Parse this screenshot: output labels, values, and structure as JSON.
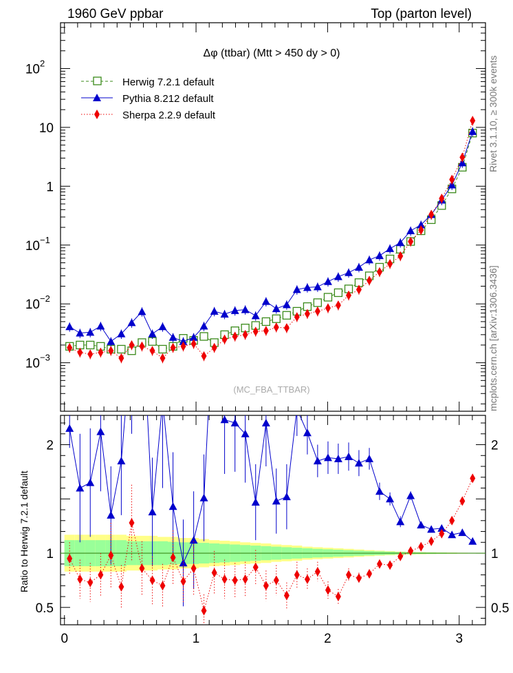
{
  "header": {
    "left": "1960 GeV ppbar",
    "right": "Top (parton level)"
  },
  "side_label_1": "Rivet 3.1.10, ≥ 300k events",
  "side_label_2": "mcplots.cern.ch [arXiv:1306.3436]",
  "watermark": "(MC_FBA_TTBAR)",
  "colors": {
    "herwig": "#3a8a1a",
    "pythia": "#0000cc",
    "sherpa": "#ee0000",
    "band_inner": "#99ff99",
    "band_outer": "#ffff88"
  },
  "chart_data": [
    {
      "type": "line",
      "title": "Δφ (ttbar) (Mtt > 450 dy > 0)",
      "log_y": true,
      "xlim": [
        -0.03,
        3.2
      ],
      "ylim": [
        0.00015,
        600
      ],
      "y_ticks": [
        {
          "value": 0.001,
          "base": "10",
          "exp": "−3"
        },
        {
          "value": 0.01,
          "base": "10",
          "exp": "−2"
        },
        {
          "value": 0.1,
          "base": "10",
          "exp": "−1"
        },
        {
          "value": 1,
          "base": "1",
          "exp": ""
        },
        {
          "value": 10,
          "base": "10",
          "exp": ""
        },
        {
          "value": 100,
          "base": "10",
          "exp": "2"
        }
      ],
      "legend": [
        "Herwig 7.2.1 default",
        "Pythia 8.212 default",
        "Sherpa 2.2.9 default"
      ],
      "x": [
        0.039,
        0.118,
        0.196,
        0.275,
        0.353,
        0.432,
        0.511,
        0.589,
        0.668,
        0.746,
        0.825,
        0.903,
        0.982,
        1.06,
        1.139,
        1.217,
        1.296,
        1.374,
        1.453,
        1.532,
        1.61,
        1.689,
        1.767,
        1.846,
        1.924,
        2.003,
        2.081,
        2.16,
        2.238,
        2.317,
        2.395,
        2.474,
        2.553,
        2.631,
        2.71,
        2.788,
        2.867,
        2.945,
        3.024,
        3.102
      ],
      "series": [
        {
          "name": "Herwig 7.2.1 default",
          "marker": "open-square",
          "values": [
            0.0019,
            0.002,
            0.002,
            0.0019,
            0.0017,
            0.0017,
            0.0016,
            0.0022,
            0.0023,
            0.0017,
            0.0019,
            0.0026,
            0.0024,
            0.0028,
            0.0022,
            0.003,
            0.0035,
            0.0039,
            0.0043,
            0.005,
            0.0056,
            0.0064,
            0.0075,
            0.009,
            0.0105,
            0.013,
            0.0155,
            0.018,
            0.023,
            0.03,
            0.042,
            0.058,
            0.085,
            0.115,
            0.175,
            0.27,
            0.47,
            0.9,
            2.1,
            8.0
          ]
        },
        {
          "name": "Pythia 8.212 default",
          "marker": "filled-triangle",
          "values": [
            0.0041,
            0.0032,
            0.0033,
            0.0042,
            0.0023,
            0.0031,
            0.0048,
            0.0074,
            0.0031,
            0.0041,
            0.0027,
            0.0023,
            0.0027,
            0.0042,
            0.0075,
            0.0067,
            0.0077,
            0.008,
            0.0063,
            0.011,
            0.0083,
            0.0097,
            0.0175,
            0.019,
            0.0195,
            0.024,
            0.029,
            0.034,
            0.042,
            0.056,
            0.066,
            0.087,
            0.11,
            0.175,
            0.22,
            0.33,
            0.58,
            1.05,
            2.5,
            8.5
          ]
        },
        {
          "name": "Sherpa 2.2.9 default",
          "marker": "filled-diamond",
          "values": [
            0.0018,
            0.0015,
            0.0014,
            0.0015,
            0.0016,
            0.0012,
            0.002,
            0.0019,
            0.0016,
            0.0012,
            0.0018,
            0.0019,
            0.0021,
            0.0013,
            0.0018,
            0.0025,
            0.0028,
            0.003,
            0.0034,
            0.0035,
            0.004,
            0.0039,
            0.006,
            0.0068,
            0.0075,
            0.0085,
            0.0095,
            0.014,
            0.0175,
            0.025,
            0.035,
            0.048,
            0.065,
            0.115,
            0.18,
            0.33,
            0.62,
            1.3,
            3.1,
            13.0
          ]
        }
      ]
    },
    {
      "type": "line",
      "ylabel": "Ratio to Herwig 7.2.1 default",
      "xlim": [
        -0.03,
        3.2
      ],
      "ylim": [
        0.34,
        2.27
      ],
      "x_ticks": [
        0,
        1,
        2,
        3
      ],
      "y_ticks": [
        0.5,
        1,
        2
      ],
      "x": [
        0.039,
        0.118,
        0.196,
        0.275,
        0.353,
        0.432,
        0.511,
        0.589,
        0.668,
        0.746,
        0.825,
        0.903,
        0.982,
        1.06,
        1.139,
        1.217,
        1.296,
        1.374,
        1.453,
        1.532,
        1.61,
        1.689,
        1.767,
        1.846,
        1.924,
        2.003,
        2.081,
        2.16,
        2.238,
        2.317,
        2.395,
        2.474,
        2.553,
        2.631,
        2.71,
        2.788,
        2.867,
        2.945,
        3.024,
        3.102
      ],
      "series": [
        {
          "name": "Pythia 8.212 default",
          "marker": "filled-triangle",
          "values": [
            2.15,
            1.6,
            1.65,
            2.12,
            1.35,
            1.85,
            3.0,
            3.3,
            1.38,
            2.4,
            1.43,
            0.91,
            1.12,
            1.51,
            3.4,
            2.23,
            2.2,
            2.1,
            1.47,
            2.2,
            1.48,
            1.52,
            2.33,
            2.11,
            1.85,
            1.88,
            1.87,
            1.89,
            1.83,
            1.87,
            1.57,
            1.5,
            1.29,
            1.53,
            1.26,
            1.22,
            1.23,
            1.17,
            1.19,
            1.11
          ],
          "err": [
            0.18,
            0.5,
            0.5,
            0.55,
            0.45,
            0.5,
            0.9,
            1.0,
            0.5,
            0.8,
            0.5,
            0.4,
            0.45,
            0.4,
            0.7,
            0.5,
            0.45,
            0.45,
            0.35,
            0.4,
            0.3,
            0.3,
            0.25,
            0.2,
            0.15,
            0.15,
            0.14,
            0.13,
            0.12,
            0.1,
            0.08,
            0.06,
            0.05,
            0.04,
            0.03,
            0.02,
            0.02,
            0.02,
            0.02,
            0.01
          ]
        },
        {
          "name": "Sherpa 2.2.9 default",
          "marker": "filled-diamond",
          "values": [
            0.95,
            0.76,
            0.73,
            0.8,
            0.98,
            0.69,
            1.28,
            0.86,
            0.75,
            0.7,
            0.96,
            0.74,
            0.86,
            0.47,
            0.82,
            0.76,
            0.75,
            0.76,
            0.87,
            0.7,
            0.75,
            0.61,
            0.8,
            0.76,
            0.83,
            0.66,
            0.6,
            0.8,
            0.77,
            0.81,
            0.9,
            0.89,
            0.97,
            1.02,
            1.06,
            1.11,
            1.18,
            1.3,
            1.48,
            1.69
          ],
          "err": [
            0.15,
            0.18,
            0.18,
            0.2,
            0.3,
            0.2,
            0.35,
            0.25,
            0.22,
            0.2,
            0.25,
            0.2,
            0.25,
            0.15,
            0.2,
            0.18,
            0.16,
            0.16,
            0.16,
            0.14,
            0.14,
            0.12,
            0.12,
            0.1,
            0.09,
            0.08,
            0.07,
            0.06,
            0.05,
            0.04,
            0.03,
            0.03,
            0.02,
            0.02,
            0.02,
            0.02,
            0.02,
            0.02,
            0.02,
            0.02
          ]
        }
      ],
      "band_inner": [
        0.12,
        0.12,
        0.12,
        0.12,
        0.12,
        0.12,
        0.11,
        0.11,
        0.11,
        0.11,
        0.105,
        0.1,
        0.1,
        0.095,
        0.09,
        0.085,
        0.08,
        0.075,
        0.07,
        0.065,
        0.06,
        0.055,
        0.05,
        0.045,
        0.04,
        0.036,
        0.032,
        0.028,
        0.024,
        0.02,
        0.017,
        0.014,
        0.011,
        0.009,
        0.007,
        0.006,
        0.005,
        0.004,
        0.003,
        0.002
      ],
      "band_outer": [
        0.17,
        0.17,
        0.17,
        0.17,
        0.17,
        0.17,
        0.16,
        0.16,
        0.16,
        0.15,
        0.15,
        0.14,
        0.14,
        0.13,
        0.12,
        0.115,
        0.11,
        0.1,
        0.095,
        0.09,
        0.08,
        0.075,
        0.07,
        0.06,
        0.055,
        0.05,
        0.045,
        0.04,
        0.034,
        0.028,
        0.023,
        0.019,
        0.015,
        0.012,
        0.01,
        0.008,
        0.006,
        0.005,
        0.004,
        0.003
      ]
    }
  ]
}
